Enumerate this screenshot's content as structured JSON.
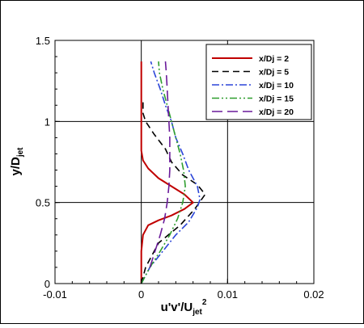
{
  "chart_data": {
    "type": "line",
    "xlabel": {
      "main": "u'v'/U",
      "sub": "jet",
      "sup": "2"
    },
    "ylabel": {
      "main": "y/D",
      "sub": "jet"
    },
    "xlim": [
      -0.01,
      0.02
    ],
    "ylim": [
      0,
      1.5
    ],
    "xticks": [
      -0.01,
      0,
      0.01,
      0.02
    ],
    "xtick_labels": [
      "-0.01",
      "0",
      "0.01",
      "0.02"
    ],
    "yticks": [
      0,
      0.5,
      1,
      1.5
    ],
    "ytick_labels": [
      "0",
      "0.5",
      "1",
      "1.5"
    ],
    "grid": true,
    "legend_position": "top-right",
    "series": [
      {
        "name": "x/Dj = 2",
        "color": "#c00000",
        "dash": "solid",
        "points": [
          [
            0,
            0
          ],
          [
            0,
            0.2
          ],
          [
            0.0002,
            0.3
          ],
          [
            0.0008,
            0.36
          ],
          [
            0.002,
            0.39
          ],
          [
            0.0035,
            0.42
          ],
          [
            0.005,
            0.46
          ],
          [
            0.006,
            0.5
          ],
          [
            0.005,
            0.55
          ],
          [
            0.0035,
            0.6
          ],
          [
            0.002,
            0.65
          ],
          [
            0.0008,
            0.71
          ],
          [
            0.0002,
            0.76
          ],
          [
            0,
            0.82
          ],
          [
            0,
            1.0
          ],
          [
            0,
            1.37
          ]
        ]
      },
      {
        "name": "x/Dj = 5",
        "color": "#000000",
        "dash": "dashed",
        "points": [
          [
            0,
            0
          ],
          [
            0.0005,
            0.1
          ],
          [
            0.002,
            0.25
          ],
          [
            0.0045,
            0.36
          ],
          [
            0.0062,
            0.46
          ],
          [
            0.0074,
            0.55
          ],
          [
            0.0065,
            0.61
          ],
          [
            0.0048,
            0.67
          ],
          [
            0.0035,
            0.75
          ],
          [
            0.0028,
            0.83
          ],
          [
            0.0015,
            0.92
          ],
          [
            0.0005,
            1.0
          ],
          [
            0.0002,
            1.05
          ],
          [
            0.0002,
            1.12
          ]
        ]
      },
      {
        "name": "x/Dj = 10",
        "color": "#2b45d8",
        "dash": "dashdot",
        "points": [
          [
            0,
            0
          ],
          [
            0.001,
            0.1
          ],
          [
            0.0025,
            0.2
          ],
          [
            0.004,
            0.3
          ],
          [
            0.0055,
            0.38
          ],
          [
            0.0065,
            0.47
          ],
          [
            0.0068,
            0.52
          ],
          [
            0.0065,
            0.6
          ],
          [
            0.0055,
            0.7
          ],
          [
            0.0048,
            0.8
          ],
          [
            0.004,
            0.9
          ],
          [
            0.0035,
            1.0
          ],
          [
            0.0028,
            1.1
          ],
          [
            0.0022,
            1.2
          ],
          [
            0.0015,
            1.3
          ],
          [
            0.0011,
            1.37
          ]
        ]
      },
      {
        "name": "x/Dj = 15",
        "color": "#2e9e2e",
        "dash": "dashdotdot",
        "points": [
          [
            0,
            0
          ],
          [
            0.001,
            0.1
          ],
          [
            0.0022,
            0.2
          ],
          [
            0.0033,
            0.3
          ],
          [
            0.0042,
            0.4
          ],
          [
            0.0048,
            0.5
          ],
          [
            0.0051,
            0.6
          ],
          [
            0.0049,
            0.7
          ],
          [
            0.0045,
            0.8
          ],
          [
            0.004,
            0.9
          ],
          [
            0.0035,
            1.0
          ],
          [
            0.003,
            1.1
          ],
          [
            0.0025,
            1.2
          ],
          [
            0.0021,
            1.3
          ],
          [
            0.002,
            1.37
          ]
        ]
      },
      {
        "name": "x/Dj = 20",
        "color": "#6a1a9a",
        "dash": "longdash",
        "points": [
          [
            0.001,
            0.1
          ],
          [
            0.0016,
            0.2
          ],
          [
            0.0022,
            0.3
          ],
          [
            0.0027,
            0.4
          ],
          [
            0.003,
            0.5
          ],
          [
            0.0032,
            0.6
          ],
          [
            0.0033,
            0.7
          ],
          [
            0.0033,
            0.8
          ],
          [
            0.0033,
            0.9
          ],
          [
            0.0032,
            1.0
          ],
          [
            0.0031,
            1.1
          ],
          [
            0.003,
            1.2
          ],
          [
            0.0029,
            1.3
          ],
          [
            0.0028,
            1.37
          ]
        ]
      }
    ]
  }
}
